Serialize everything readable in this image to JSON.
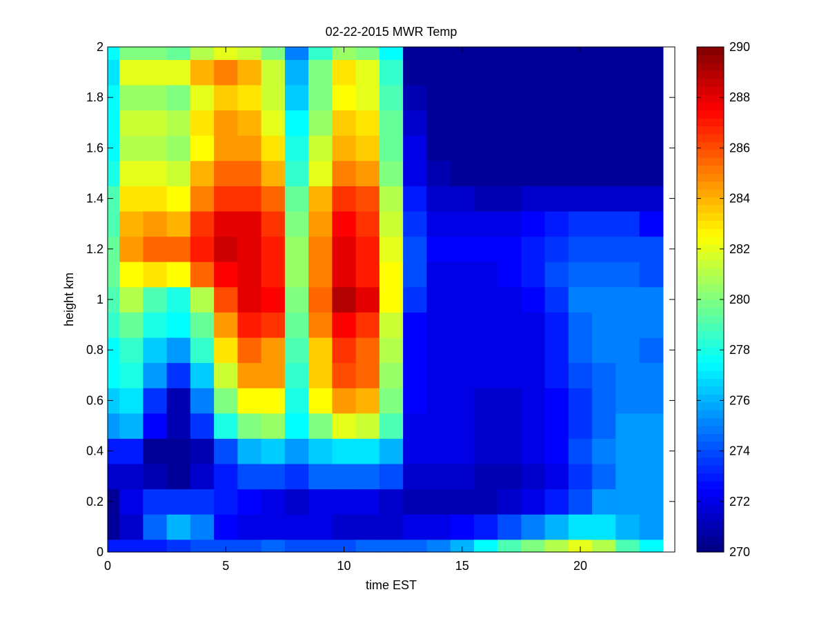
{
  "chart_data": {
    "type": "heatmap",
    "title": "02-22-2015 MWR Temp",
    "xlabel": "time EST",
    "ylabel": "height km",
    "xlim": [
      0,
      24
    ],
    "ylim": [
      0,
      2
    ],
    "xticks": [
      0,
      5,
      10,
      15,
      20
    ],
    "yticks": [
      0,
      0.2,
      0.4,
      0.6,
      0.8,
      1,
      1.2,
      1.4,
      1.6,
      1.8,
      2
    ],
    "xtick_labels": [
      "0",
      "5",
      "10",
      "15",
      "20"
    ],
    "ytick_labels": [
      "0",
      "0.2",
      "0.4",
      "0.6",
      "0.8",
      "1",
      "1.2",
      "1.4",
      "1.6",
      "1.8",
      "2"
    ],
    "colorbar": {
      "colormap": "jet",
      "clim": [
        270,
        290
      ],
      "ticks": [
        270,
        272,
        274,
        276,
        278,
        280,
        282,
        284,
        286,
        288,
        290
      ],
      "tick_labels": [
        "270",
        "272",
        "274",
        "276",
        "278",
        "280",
        "282",
        "284",
        "286",
        "288",
        "290"
      ]
    },
    "x_edges": [
      0,
      0.5,
      1.5,
      2.5,
      3.5,
      4.5,
      5.5,
      6.5,
      7.5,
      8.5,
      9.5,
      10.5,
      11.5,
      12.5,
      13.5,
      14.5,
      15.5,
      16.5,
      17.5,
      18.5,
      19.5,
      20.5,
      21.5,
      22.5,
      23.5
    ],
    "y_edges": [
      0,
      0.05,
      0.15,
      0.25,
      0.35,
      0.45,
      0.55,
      0.65,
      0.75,
      0.85,
      0.95,
      1.05,
      1.15,
      1.25,
      1.35,
      1.45,
      1.55,
      1.65,
      1.75,
      1.85,
      1.95,
      2.0
    ],
    "values": [
      [
        273.0,
        273.0,
        273.0,
        273.5,
        274.0,
        274.0,
        274.0,
        274.5,
        274.0,
        274.0,
        274.0,
        274.5,
        274.5,
        274.5,
        275.0,
        276.0,
        277.5,
        279.0,
        280.0,
        281.0,
        282.0,
        281.0,
        279.0,
        277.5
      ],
      [
        270.5,
        271.5,
        274.5,
        276.0,
        275.0,
        272.5,
        272.0,
        272.0,
        272.0,
        272.0,
        271.5,
        271.5,
        271.5,
        272.0,
        272.0,
        272.5,
        273.0,
        274.0,
        275.0,
        276.0,
        277.0,
        277.0,
        276.0,
        275.5
      ],
      [
        270.5,
        272.0,
        273.5,
        273.5,
        273.5,
        273.0,
        272.5,
        272.0,
        271.5,
        272.0,
        272.0,
        272.0,
        271.5,
        271.0,
        271.0,
        271.0,
        271.0,
        271.5,
        272.0,
        273.0,
        274.0,
        275.5,
        275.5,
        275.5
      ],
      [
        271.5,
        271.5,
        271.0,
        270.5,
        271.5,
        273.0,
        274.0,
        274.0,
        273.5,
        274.5,
        274.5,
        274.5,
        274.0,
        271.5,
        271.5,
        271.5,
        271.0,
        271.0,
        271.5,
        272.0,
        273.5,
        274.5,
        275.5,
        275.5
      ],
      [
        273.0,
        273.0,
        270.5,
        270.5,
        271.0,
        274.0,
        276.0,
        276.5,
        275.5,
        276.5,
        277.0,
        277.0,
        276.0,
        272.0,
        272.0,
        272.0,
        271.5,
        271.5,
        272.0,
        272.5,
        274.0,
        275.0,
        275.5,
        275.5
      ],
      [
        275.5,
        276.0,
        272.5,
        271.0,
        273.5,
        278.0,
        280.0,
        280.5,
        277.5,
        280.0,
        282.0,
        281.5,
        279.0,
        272.0,
        272.0,
        272.0,
        271.5,
        271.5,
        272.0,
        272.5,
        273.5,
        274.5,
        275.5,
        275.5
      ],
      [
        276.5,
        277.0,
        273.5,
        271.0,
        275.0,
        280.0,
        282.5,
        282.5,
        278.0,
        282.5,
        284.5,
        284.0,
        280.0,
        272.5,
        272.0,
        272.0,
        271.5,
        271.5,
        272.0,
        272.5,
        273.5,
        274.5,
        275.0,
        275.0
      ],
      [
        277.5,
        278.0,
        275.5,
        273.5,
        276.5,
        281.5,
        284.5,
        284.5,
        278.5,
        283.5,
        286.0,
        285.5,
        280.5,
        272.5,
        272.0,
        272.0,
        272.0,
        272.0,
        272.0,
        273.0,
        274.0,
        274.5,
        275.0,
        275.0
      ],
      [
        277.5,
        278.5,
        276.5,
        275.5,
        278.5,
        283.0,
        285.5,
        284.5,
        279.0,
        283.5,
        286.5,
        285.5,
        281.0,
        272.5,
        272.0,
        272.0,
        272.0,
        272.0,
        272.0,
        273.0,
        274.5,
        275.0,
        275.0,
        274.5
      ],
      [
        278.5,
        279.5,
        278.0,
        277.5,
        279.5,
        284.5,
        287.0,
        286.5,
        279.5,
        285.0,
        287.5,
        286.5,
        281.5,
        272.5,
        272.0,
        272.0,
        272.0,
        272.0,
        272.0,
        273.0,
        274.5,
        275.0,
        275.0,
        275.0
      ],
      [
        279.0,
        281.0,
        279.0,
        278.0,
        281.0,
        286.0,
        288.0,
        287.5,
        280.0,
        285.5,
        289.0,
        288.0,
        282.5,
        273.5,
        272.0,
        272.0,
        272.0,
        272.0,
        272.5,
        273.5,
        275.0,
        275.0,
        275.0,
        275.0
      ],
      [
        279.5,
        282.5,
        283.0,
        282.5,
        285.5,
        287.5,
        288.0,
        287.0,
        280.5,
        285.0,
        288.0,
        287.0,
        282.5,
        274.0,
        272.0,
        272.0,
        272.0,
        272.5,
        273.0,
        274.0,
        274.5,
        274.5,
        274.5,
        274.0
      ],
      [
        279.5,
        284.5,
        285.5,
        285.5,
        287.0,
        288.5,
        288.0,
        287.0,
        280.5,
        285.0,
        288.0,
        287.0,
        282.0,
        274.0,
        272.5,
        272.5,
        272.5,
        272.5,
        273.0,
        273.5,
        274.0,
        274.0,
        274.0,
        274.0
      ],
      [
        279.0,
        284.0,
        284.5,
        284.0,
        286.5,
        288.0,
        288.0,
        286.5,
        280.0,
        284.5,
        287.5,
        286.5,
        281.5,
        273.5,
        272.0,
        272.0,
        272.0,
        272.0,
        272.5,
        273.0,
        273.5,
        273.5,
        273.5,
        272.5
      ],
      [
        279.0,
        283.0,
        283.0,
        282.5,
        285.0,
        286.5,
        286.5,
        285.5,
        279.5,
        284.0,
        286.5,
        286.0,
        281.0,
        273.0,
        271.5,
        271.5,
        271.0,
        271.0,
        271.5,
        271.5,
        271.5,
        271.5,
        271.5,
        271.5
      ],
      [
        278.0,
        282.0,
        282.0,
        281.5,
        284.0,
        285.5,
        285.5,
        284.0,
        278.5,
        282.0,
        285.0,
        284.5,
        280.0,
        272.0,
        271.0,
        270.5,
        270.5,
        270.5,
        270.5,
        270.5,
        270.5,
        270.5,
        270.5,
        270.5
      ],
      [
        277.5,
        281.0,
        281.0,
        280.5,
        282.5,
        284.5,
        284.5,
        283.0,
        278.0,
        281.5,
        284.0,
        283.5,
        279.5,
        272.0,
        270.5,
        270.5,
        270.5,
        270.5,
        270.5,
        270.5,
        270.5,
        270.5,
        270.5,
        270.5
      ],
      [
        277.5,
        281.5,
        281.5,
        281.0,
        283.0,
        284.5,
        284.0,
        282.0,
        277.5,
        280.5,
        283.5,
        283.0,
        279.5,
        271.5,
        270.5,
        270.5,
        270.5,
        270.5,
        270.5,
        270.5,
        270.5,
        270.5,
        270.5,
        270.5
      ],
      [
        277.5,
        280.5,
        280.5,
        280.0,
        282.0,
        283.5,
        283.0,
        281.5,
        276.5,
        280.0,
        282.5,
        282.0,
        279.0,
        271.0,
        270.5,
        270.5,
        270.5,
        270.5,
        270.5,
        270.5,
        270.5,
        270.5,
        270.5,
        270.5
      ],
      [
        277.0,
        282.0,
        282.0,
        282.0,
        284.0,
        285.0,
        284.0,
        281.5,
        276.0,
        280.0,
        283.0,
        282.0,
        278.5,
        270.5,
        270.5,
        270.5,
        270.5,
        270.5,
        270.5,
        270.5,
        270.5,
        270.5,
        270.5,
        270.5
      ],
      [
        277.5,
        280.0,
        280.0,
        279.5,
        281.0,
        282.0,
        281.5,
        280.0,
        275.0,
        278.5,
        280.5,
        280.0,
        277.5,
        270.5,
        270.5,
        270.5,
        270.5,
        270.5,
        270.5,
        270.5,
        270.5,
        270.5,
        270.5,
        270.5
      ]
    ]
  }
}
